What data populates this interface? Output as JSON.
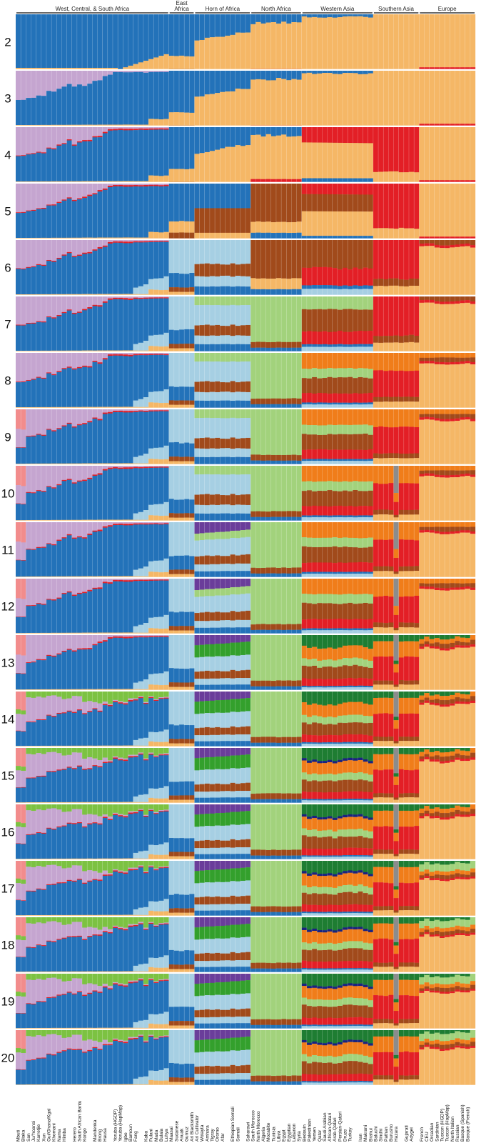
{
  "chart_data": {
    "type": "structure-admixture",
    "k_values": [
      2,
      3,
      4,
      5,
      6,
      7,
      8,
      9,
      10,
      11,
      12,
      13,
      14,
      15,
      16,
      17,
      18,
      19,
      20
    ],
    "regions": [
      {
        "name": "West, Central, & South Africa",
        "bars": [
          0,
          29
        ]
      },
      {
        "name": "East Africa",
        "bars": [
          30,
          34
        ]
      },
      {
        "name": "Horn of Africa",
        "bars": [
          35,
          45
        ]
      },
      {
        "name": "North Africa",
        "bars": [
          46,
          55
        ]
      },
      {
        "name": "Western Asia",
        "bars": [
          56,
          69
        ]
      },
      {
        "name": "Southern Asia",
        "bars": [
          70,
          78
        ]
      },
      {
        "name": "Europe",
        "bars": [
          79,
          89
        ]
      }
    ],
    "populations": [
      {
        "name": "Mbuti",
        "bar": 0
      },
      {
        "name": "Biaka",
        "bar": 1
      },
      {
        "name": "San",
        "bar": 2
      },
      {
        "name": "Ju/'hoansi",
        "bar": 3
      },
      {
        "name": "Karretjie",
        "bar": 4
      },
      {
        "name": "Xun",
        "bar": 5
      },
      {
        "name": "Gui/Ghana/Kgal",
        "bar": 6
      },
      {
        "name": "Khomani",
        "bar": 7
      },
      {
        "name": "Nama",
        "bar": 8
      },
      {
        "name": "Himba",
        "bar": 9
      },
      {
        "name": "Herero",
        "bar": 11
      },
      {
        "name": "South African Bantu",
        "bar": 12
      },
      {
        "name": "Kongo",
        "bar": 13
      },
      {
        "name": "Mandenka",
        "bar": 15
      },
      {
        "name": "Brong",
        "bar": 16
      },
      {
        "name": "Hausa",
        "bar": 17
      },
      {
        "name": "Yoruba (HGDP)",
        "bar": 19
      },
      {
        "name": "Yoruba (HapMap)",
        "bar": 20
      },
      {
        "name": "Igbo",
        "bar": 21
      },
      {
        "name": "Bamoun",
        "bar": 22
      },
      {
        "name": "Fang",
        "bar": 23
      },
      {
        "name": "Kaba",
        "bar": 25
      },
      {
        "name": "Fulani",
        "bar": 26
      },
      {
        "name": "Mada",
        "bar": 27
      },
      {
        "name": "Bulala",
        "bar": 28
      },
      {
        "name": "Luhya",
        "bar": 29
      },
      {
        "name": "Maasai",
        "bar": 30
      },
      {
        "name": "Sudanese",
        "bar": 31
      },
      {
        "name": "Anuak",
        "bar": 32
      },
      {
        "name": "Gumuz",
        "bar": 33
      },
      {
        "name": "Ari Blacksmith",
        "bar": 34
      },
      {
        "name": "Ari Cultivator",
        "bar": 35
      },
      {
        "name": "Wolayta",
        "bar": 36
      },
      {
        "name": "Amhara",
        "bar": 37
      },
      {
        "name": "Tigray",
        "bar": 38
      },
      {
        "name": "Oromo",
        "bar": 39
      },
      {
        "name": "Afar",
        "bar": 40
      },
      {
        "name": "Ethiopian Somali",
        "bar": 42
      },
      {
        "name": "Somali",
        "bar": 43
      },
      {
        "name": "Saharawi",
        "bar": 45
      },
      {
        "name": "South Morocco",
        "bar": 46
      },
      {
        "name": "North Morocco",
        "bar": 47
      },
      {
        "name": "Algeria",
        "bar": 48
      },
      {
        "name": "Mozabite",
        "bar": 49
      },
      {
        "name": "Tunisia",
        "bar": 50
      },
      {
        "name": "Libya",
        "bar": 51
      },
      {
        "name": "Egypt",
        "bar": 52
      },
      {
        "name": "Egyptian",
        "bar": 53
      },
      {
        "name": "Lebanon",
        "bar": 54
      },
      {
        "name": "Syria",
        "bar": 55
      },
      {
        "name": "Bedouin",
        "bar": 56
      },
      {
        "name": "Palestinian",
        "bar": 57
      },
      {
        "name": "Yemen",
        "bar": 58
      },
      {
        "name": "Qatar",
        "bar": 59
      },
      {
        "name": "Saudi Arabian",
        "bar": 60
      },
      {
        "name": "African-Qatari",
        "bar": 61
      },
      {
        "name": "Arab-Qatari",
        "bar": 62
      },
      {
        "name": "Persian-Qatari",
        "bar": 63
      },
      {
        "name": "Druze",
        "bar": 64
      },
      {
        "name": "Turkey",
        "bar": 65
      },
      {
        "name": "Iran",
        "bar": 67
      },
      {
        "name": "Makrani",
        "bar": 68
      },
      {
        "name": "Brahui",
        "bar": 69
      },
      {
        "name": "Baluchi",
        "bar": 70
      },
      {
        "name": "Sindhi",
        "bar": 71
      },
      {
        "name": "Pathan",
        "bar": 72
      },
      {
        "name": "Burusho",
        "bar": 73
      },
      {
        "name": "Hazara",
        "bar": 74
      },
      {
        "name": "Gujarati",
        "bar": 76
      },
      {
        "name": "Adygei",
        "bar": 77
      },
      {
        "name": "French",
        "bar": 79
      },
      {
        "name": "CEU",
        "bar": 80
      },
      {
        "name": "Orcadian",
        "bar": 81
      },
      {
        "name": "Sardinian",
        "bar": 82
      },
      {
        "name": "Tuscan (HGDP)",
        "bar": 83
      },
      {
        "name": "Tuscan (HapMap)",
        "bar": 84
      },
      {
        "name": "North Italian",
        "bar": 85
      },
      {
        "name": "Russian",
        "bar": 86
      },
      {
        "name": "Basque (Spanish)",
        "bar": 87
      },
      {
        "name": "Basque (French)",
        "bar": 88
      }
    ],
    "bar_count": 90,
    "components": {
      "blue": "#2372b9",
      "orange_yellow": "#f5b766",
      "lavender": "#c5a5d0",
      "red": "#e31f26",
      "brown": "#a14a1b",
      "light_blue": "#a6cfe3",
      "light_green": "#a2d27c",
      "orange": "#f07d1a",
      "pink": "#f28c8c",
      "grey": "#8c8c8c",
      "purple": "#6a3d9a",
      "dark_green": "#1e7d32",
      "green": "#33a02c",
      "bright_green": "#7cc242",
      "navy": "#1a237e",
      "violet": "#8d80c8"
    }
  }
}
